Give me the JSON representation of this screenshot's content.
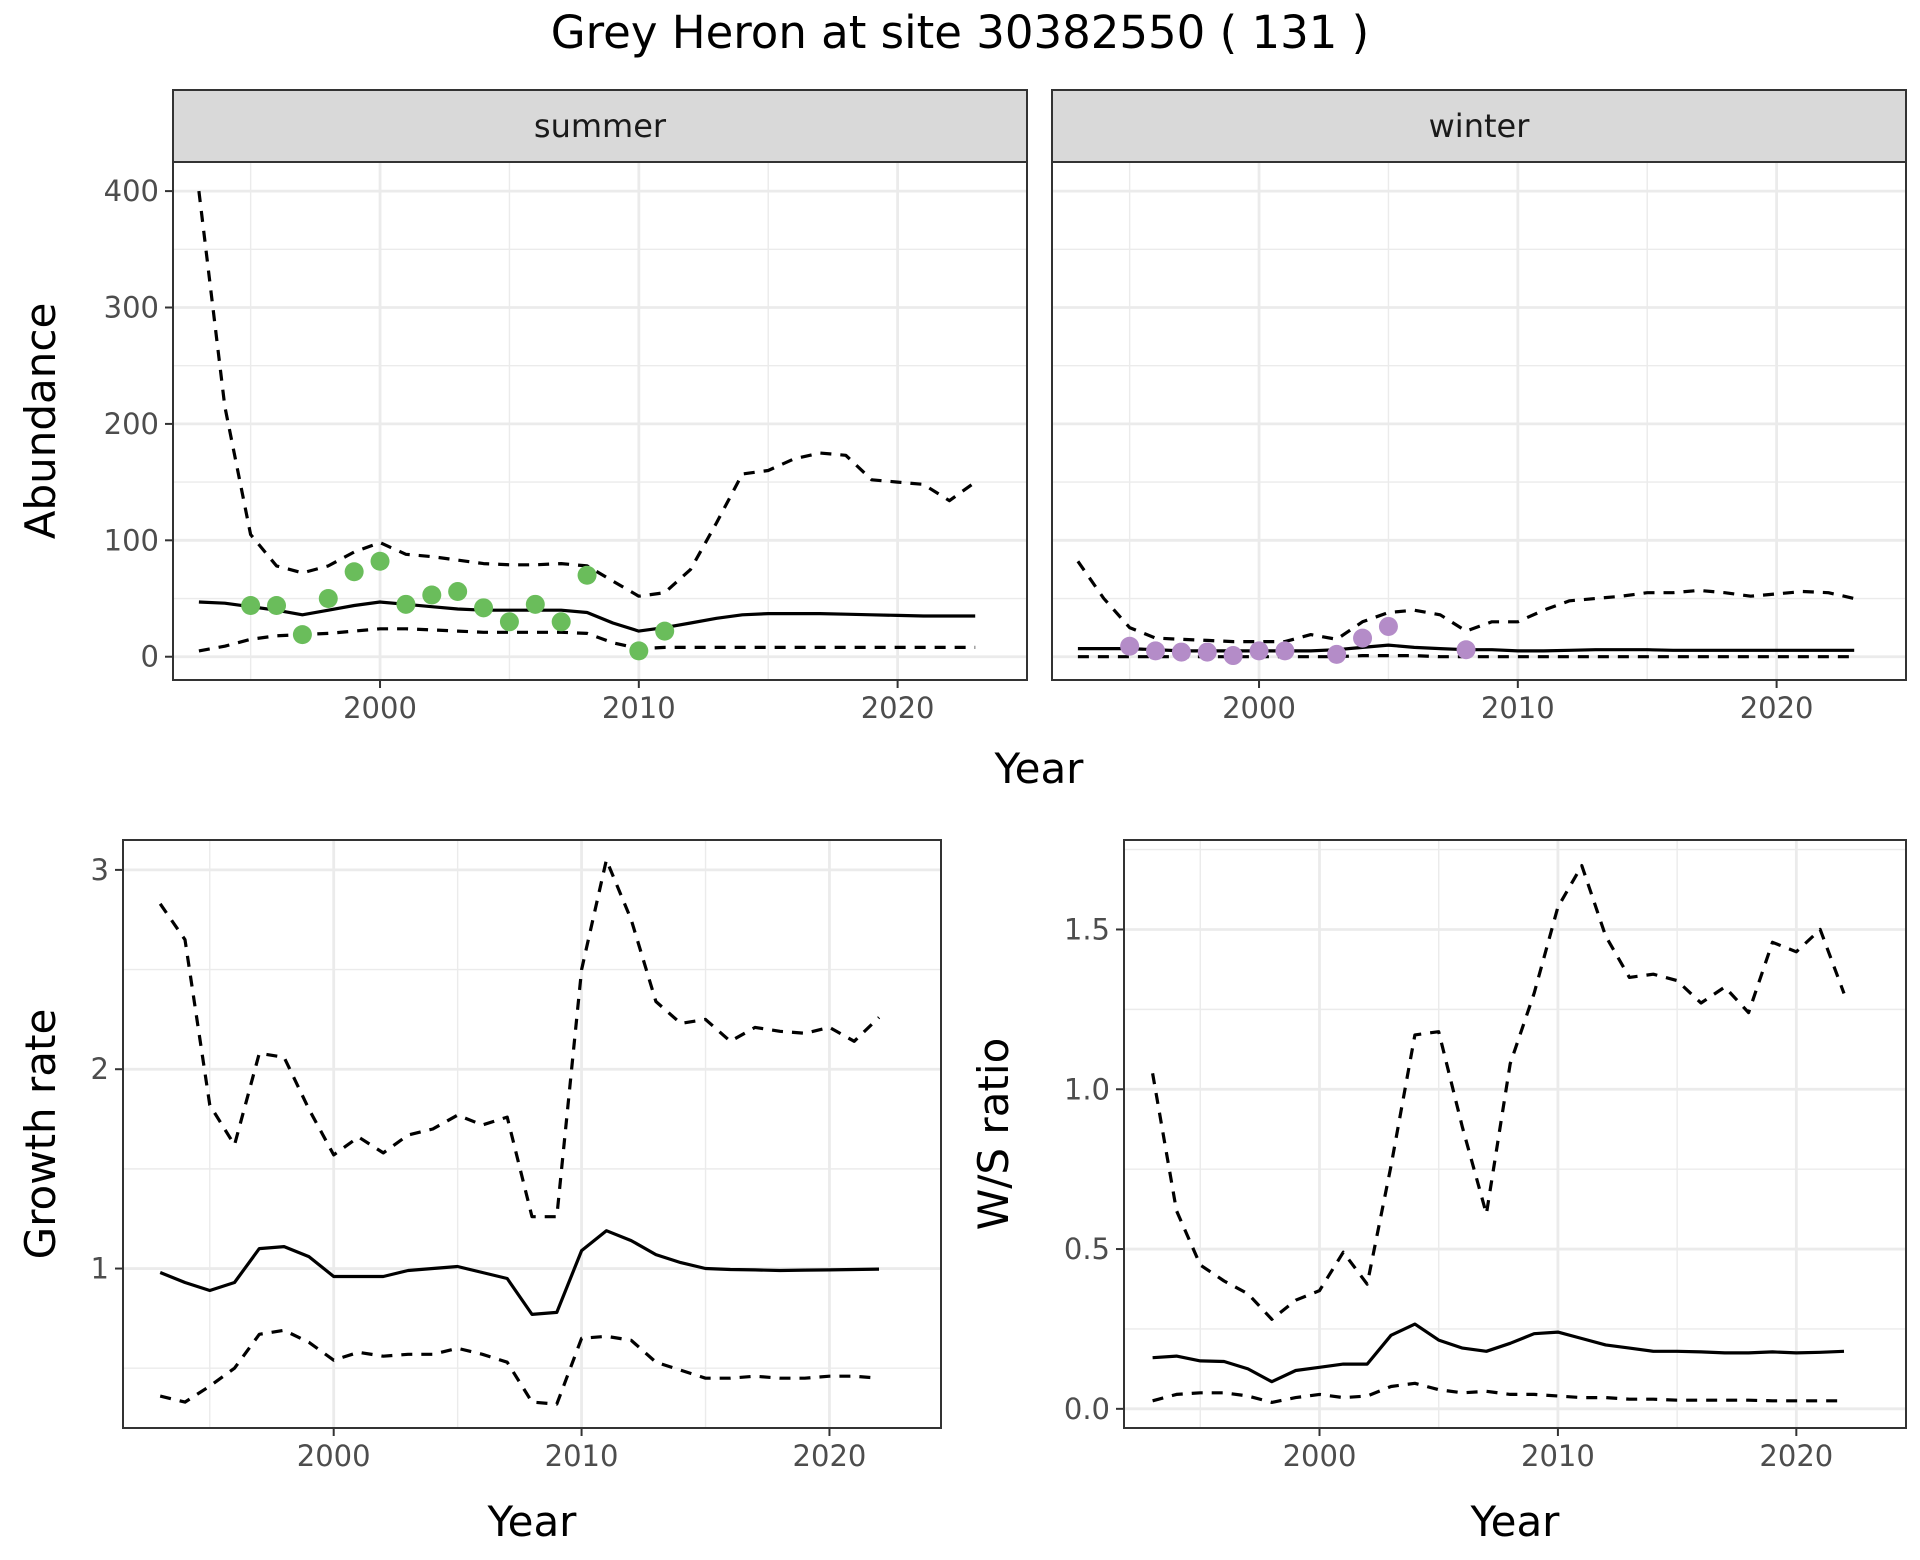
{
  "title": "Grey Heron at site 30382550 ( 131 )",
  "colors": {
    "summer_points": "#6ABD5B",
    "winter_points": "#B48CC8",
    "lines": "#000000",
    "strip_fill": "#D9D9D9",
    "grid": "#EBEBEB"
  },
  "chart_data": [
    {
      "id": "abundance",
      "type": "line",
      "ylabel": "Abundance",
      "xlabel": "Year",
      "xlim": [
        1992,
        2025
      ],
      "ylim": [
        -20,
        425
      ],
      "x_ticks": [
        2000,
        2010,
        2020
      ],
      "y_ticks": [
        0,
        100,
        200,
        300,
        400
      ],
      "grid": true,
      "facets": [
        {
          "label": "summer",
          "point_color": "#6ABD5B",
          "estimate": {
            "x": [
              1993,
              1994,
              1995,
              1996,
              1997,
              1998,
              1999,
              2000,
              2001,
              2002,
              2003,
              2004,
              2005,
              2006,
              2007,
              2008,
              2009,
              2010,
              2011,
              2012,
              2013,
              2014,
              2015,
              2016,
              2017,
              2018,
              2019,
              2020,
              2021,
              2022,
              2023
            ],
            "y": [
              47,
              46,
              43,
              40,
              36,
              40,
              44,
              47,
              45,
              43,
              41,
              40,
              40,
              40,
              40,
              38,
              29,
              22,
              25,
              29,
              33,
              36,
              37,
              37,
              37,
              36.5,
              36,
              35.5,
              35,
              35,
              35
            ]
          },
          "upper": {
            "x": [
              1993,
              1994,
              1995,
              1996,
              1997,
              1998,
              1999,
              2000,
              2001,
              2002,
              2003,
              2004,
              2005,
              2006,
              2007,
              2008,
              2009,
              2010,
              2011,
              2012,
              2013,
              2014,
              2015,
              2016,
              2017,
              2018,
              2019,
              2020,
              2021,
              2022,
              2023
            ],
            "y": [
              400,
              215,
              105,
              78,
              72,
              78,
              90,
              98,
              88,
              86,
              83,
              80,
              79,
              79,
              80,
              78,
              65,
              52,
              55,
              75,
              115,
              157,
              160,
              170,
              175,
              173,
              152,
              150,
              148,
              134,
              150
            ]
          },
          "lower": {
            "x": [
              1993,
              1994,
              1995,
              1996,
              1997,
              1998,
              1999,
              2000,
              2001,
              2002,
              2003,
              2004,
              2005,
              2006,
              2007,
              2008,
              2009,
              2010,
              2011,
              2012,
              2013,
              2014,
              2015,
              2016,
              2017,
              2018,
              2019,
              2020,
              2021,
              2022,
              2023
            ],
            "y": [
              5,
              9,
              15,
              18,
              19,
              20,
              22,
              24,
              24,
              23,
              22,
              21,
              21,
              21,
              21,
              20,
              12,
              7,
              8,
              8,
              8,
              8,
              8,
              8,
              8,
              8,
              8,
              8,
              8,
              8,
              8
            ]
          },
          "points": {
            "x": [
              1995,
              1996,
              1997,
              1998,
              1999,
              2000,
              2001,
              2002,
              2003,
              2004,
              2005,
              2006,
              2007,
              2008,
              2010,
              2011
            ],
            "y": [
              44,
              44,
              19,
              50,
              73,
              82,
              45,
              53,
              56,
              42,
              30,
              45,
              30,
              70,
              5,
              22
            ]
          }
        },
        {
          "label": "winter",
          "point_color": "#B48CC8",
          "estimate": {
            "x": [
              1993,
              1994,
              1995,
              1996,
              1997,
              1998,
              1999,
              2000,
              2001,
              2002,
              2003,
              2004,
              2005,
              2006,
              2007,
              2008,
              2009,
              2010,
              2011,
              2012,
              2013,
              2014,
              2015,
              2016,
              2017,
              2018,
              2019,
              2020,
              2021,
              2022,
              2023
            ],
            "y": [
              7,
              7,
              7,
              6,
              5,
              5,
              5,
              5,
              5,
              5,
              6,
              8,
              10,
              8,
              7,
              6,
              6,
              5,
              5,
              5.5,
              6,
              6,
              6,
              5.5,
              5.5,
              5.5,
              5.5,
              5.5,
              5.5,
              5.5,
              5.5
            ]
          },
          "upper": {
            "x": [
              1993,
              1994,
              1995,
              1996,
              1997,
              1998,
              1999,
              2000,
              2001,
              2002,
              2003,
              2004,
              2005,
              2006,
              2007,
              2008,
              2009,
              2010,
              2011,
              2012,
              2013,
              2014,
              2015,
              2016,
              2017,
              2018,
              2019,
              2020,
              2021,
              2022,
              2023
            ],
            "y": [
              82,
              50,
              25,
              16,
              15,
              14,
              13,
              13,
              13,
              19,
              15,
              30,
              38,
              40,
              36,
              22,
              30,
              30,
              40,
              48,
              50,
              52,
              55,
              55,
              57,
              55,
              52,
              54,
              56,
              55,
              50
            ]
          },
          "lower": {
            "x": [
              1993,
              1994,
              1995,
              1996,
              1997,
              1998,
              1999,
              2000,
              2001,
              2002,
              2003,
              2004,
              2005,
              2006,
              2007,
              2008,
              2009,
              2010,
              2011,
              2012,
              2013,
              2014,
              2015,
              2016,
              2017,
              2018,
              2019,
              2020,
              2021,
              2022,
              2023
            ],
            "y": [
              0,
              0,
              0,
              0,
              0,
              0,
              0,
              0,
              0,
              0,
              0,
              1,
              1,
              1,
              0,
              0,
              0,
              0,
              0,
              0,
              0,
              0,
              0,
              0,
              0,
              0,
              0,
              0,
              0,
              0,
              0
            ]
          },
          "points": {
            "x": [
              1995,
              1996,
              1997,
              1998,
              1999,
              2000,
              2001,
              2003,
              2004,
              2005,
              2008
            ],
            "y": [
              9,
              5,
              4,
              4,
              1,
              5,
              5,
              2,
              16,
              26,
              6
            ]
          }
        }
      ]
    },
    {
      "id": "growth",
      "type": "line",
      "ylabel": "Growth rate",
      "xlabel": "Year",
      "xlim": [
        1991.5,
        2024.5
      ],
      "ylim": [
        0.2,
        3.15
      ],
      "x_ticks": [
        2000,
        2010,
        2020
      ],
      "y_ticks": [
        1,
        2,
        3
      ],
      "grid": true,
      "estimate": {
        "x": [
          1993,
          1994,
          1995,
          1996,
          1997,
          1998,
          1999,
          2000,
          2001,
          2002,
          2003,
          2004,
          2005,
          2006,
          2007,
          2008,
          2009,
          2010,
          2011,
          2012,
          2013,
          2014,
          2015,
          2016,
          2017,
          2018,
          2019,
          2020,
          2021,
          2022
        ],
        "y": [
          0.98,
          0.93,
          0.89,
          0.93,
          1.1,
          1.11,
          1.06,
          0.96,
          0.96,
          0.96,
          0.99,
          1.0,
          1.01,
          0.98,
          0.95,
          0.77,
          0.78,
          1.09,
          1.19,
          1.14,
          1.07,
          1.03,
          1.0,
          0.995,
          0.993,
          0.99,
          0.992,
          0.993,
          0.995,
          0.997
        ]
      },
      "upper": {
        "x": [
          1993,
          1994,
          1995,
          1996,
          1997,
          1998,
          1999,
          2000,
          2001,
          2002,
          2003,
          2004,
          2005,
          2006,
          2007,
          2008,
          2009,
          2010,
          2011,
          2012,
          2013,
          2014,
          2015,
          2016,
          2017,
          2018,
          2019,
          2020,
          2021,
          2022
        ],
        "y": [
          2.83,
          2.65,
          1.82,
          1.62,
          2.08,
          2.06,
          1.8,
          1.57,
          1.66,
          1.58,
          1.67,
          1.7,
          1.77,
          1.72,
          1.76,
          1.26,
          1.26,
          2.5,
          3.05,
          2.75,
          2.34,
          2.23,
          2.25,
          2.14,
          2.21,
          2.19,
          2.18,
          2.21,
          2.14,
          2.26
        ]
      },
      "lower": {
        "x": [
          1993,
          1994,
          1995,
          1996,
          1997,
          1998,
          1999,
          2000,
          2001,
          2002,
          2003,
          2004,
          2005,
          2006,
          2007,
          2008,
          2009,
          2010,
          2011,
          2012,
          2013,
          2014,
          2015,
          2016,
          2017,
          2018,
          2019,
          2020,
          2021,
          2022
        ],
        "y": [
          0.36,
          0.33,
          0.41,
          0.5,
          0.67,
          0.69,
          0.63,
          0.54,
          0.58,
          0.56,
          0.57,
          0.57,
          0.6,
          0.57,
          0.53,
          0.33,
          0.32,
          0.65,
          0.66,
          0.64,
          0.53,
          0.49,
          0.45,
          0.45,
          0.46,
          0.45,
          0.45,
          0.46,
          0.46,
          0.45
        ]
      }
    },
    {
      "id": "ws_ratio",
      "type": "line",
      "ylabel": "W/S ratio",
      "xlabel": "Year",
      "xlim": [
        1991.8,
        2024.6
      ],
      "ylim": [
        -0.06,
        1.78
      ],
      "x_ticks": [
        2000,
        2010,
        2020
      ],
      "y_ticks": [
        0.0,
        0.5,
        1.0,
        1.5
      ],
      "y_tick_labels": [
        "0.0",
        "0.5",
        "1.0",
        "1.5"
      ],
      "grid": true,
      "estimate": {
        "x": [
          1993,
          1994,
          1995,
          1996,
          1997,
          1998,
          1999,
          2000,
          2001,
          2002,
          2003,
          2004,
          2005,
          2006,
          2007,
          2008,
          2009,
          2010,
          2011,
          2012,
          2013,
          2014,
          2015,
          2016,
          2017,
          2018,
          2019,
          2020,
          2021,
          2022
        ],
        "y": [
          0.16,
          0.165,
          0.15,
          0.148,
          0.125,
          0.085,
          0.12,
          0.13,
          0.14,
          0.14,
          0.23,
          0.265,
          0.215,
          0.19,
          0.18,
          0.205,
          0.235,
          0.24,
          0.22,
          0.2,
          0.19,
          0.18,
          0.18,
          0.178,
          0.175,
          0.175,
          0.178,
          0.175,
          0.177,
          0.18
        ]
      },
      "upper": {
        "x": [
          1993,
          1994,
          1995,
          1996,
          1997,
          1998,
          1999,
          2000,
          2001,
          2002,
          2003,
          2004,
          2005,
          2006,
          2007,
          2008,
          2009,
          2010,
          2011,
          2012,
          2013,
          2014,
          2015,
          2016,
          2017,
          2018,
          2019,
          2020,
          2021,
          2022
        ],
        "y": [
          1.05,
          0.62,
          0.45,
          0.4,
          0.36,
          0.28,
          0.34,
          0.37,
          0.49,
          0.39,
          0.76,
          1.17,
          1.18,
          0.88,
          0.61,
          1.08,
          1.3,
          1.57,
          1.7,
          1.48,
          1.35,
          1.36,
          1.34,
          1.27,
          1.32,
          1.24,
          1.46,
          1.43,
          1.5,
          1.3
        ]
      },
      "lower": {
        "x": [
          1993,
          1994,
          1995,
          1996,
          1997,
          1998,
          1999,
          2000,
          2001,
          2002,
          2003,
          2004,
          2005,
          2006,
          2007,
          2008,
          2009,
          2010,
          2011,
          2012,
          2013,
          2014,
          2015,
          2016,
          2017,
          2018,
          2019,
          2020,
          2021,
          2022
        ],
        "y": [
          0.025,
          0.045,
          0.05,
          0.05,
          0.04,
          0.02,
          0.035,
          0.045,
          0.035,
          0.04,
          0.07,
          0.08,
          0.06,
          0.05,
          0.055,
          0.045,
          0.045,
          0.04,
          0.035,
          0.035,
          0.03,
          0.03,
          0.027,
          0.027,
          0.027,
          0.027,
          0.025,
          0.025,
          0.025,
          0.025
        ]
      }
    }
  ]
}
